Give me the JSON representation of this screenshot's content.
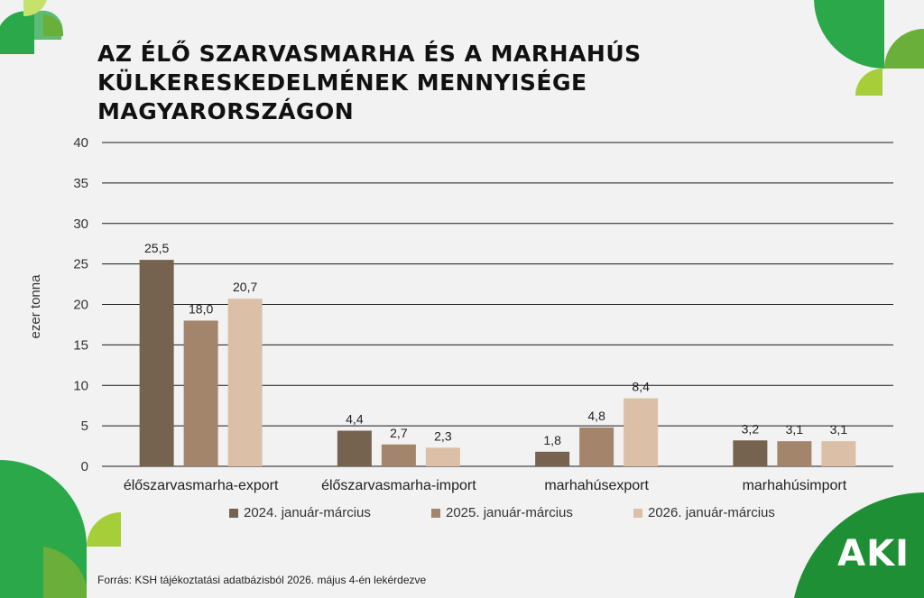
{
  "title_lines": [
    "AZ ÉLŐ SZARVASMARHA ÉS A MARHAHÚS",
    "KÜLKERESKEDELMÉNEK MENNYISÉGE",
    "MAGYARORSZÁGON"
  ],
  "source": "Forrás: KSH tájékoztatási adatbázisból 2026. május 4-én lekérdezve",
  "logo": "AKI",
  "colors": {
    "series": [
      "#756350",
      "#a3856c",
      "#dcbfa7"
    ],
    "green_dark": "#1e9e3e",
    "green_mid": "#4caf50",
    "green_light": "#8cc63f",
    "grid": "#1a1a1a"
  },
  "chart_data": {
    "type": "bar",
    "title": "AZ ÉLŐ SZARVASMARHA ÉS A MARHAHÚS KÜLKERESKEDELMÉNEK MENNYISÉGE MAGYARORSZÁGON",
    "xlabel": "",
    "ylabel": "ezer tonna",
    "ylim": [
      0,
      40
    ],
    "yticks": [
      0,
      5,
      10,
      15,
      20,
      25,
      30,
      35,
      40
    ],
    "grid": true,
    "legend_position": "bottom",
    "categories": [
      "élőszarvasmarha-export",
      "élőszarvasmarha-import",
      "marhahúsexport",
      "marhahúsimport"
    ],
    "series": [
      {
        "name": "2024. január-március",
        "values": [
          25.5,
          4.4,
          1.8,
          3.2
        ],
        "labels": [
          "25,5",
          "4,4",
          "1,8",
          "3,2"
        ]
      },
      {
        "name": "2025. január-március",
        "values": [
          18.0,
          2.7,
          4.8,
          3.1
        ],
        "labels": [
          "18,0",
          "2,7",
          "4,8",
          "3,1"
        ]
      },
      {
        "name": "2026. január-március",
        "values": [
          20.7,
          2.3,
          8.4,
          3.1
        ],
        "labels": [
          "20,7",
          "2,3",
          "8,4",
          "3,1"
        ]
      }
    ]
  }
}
